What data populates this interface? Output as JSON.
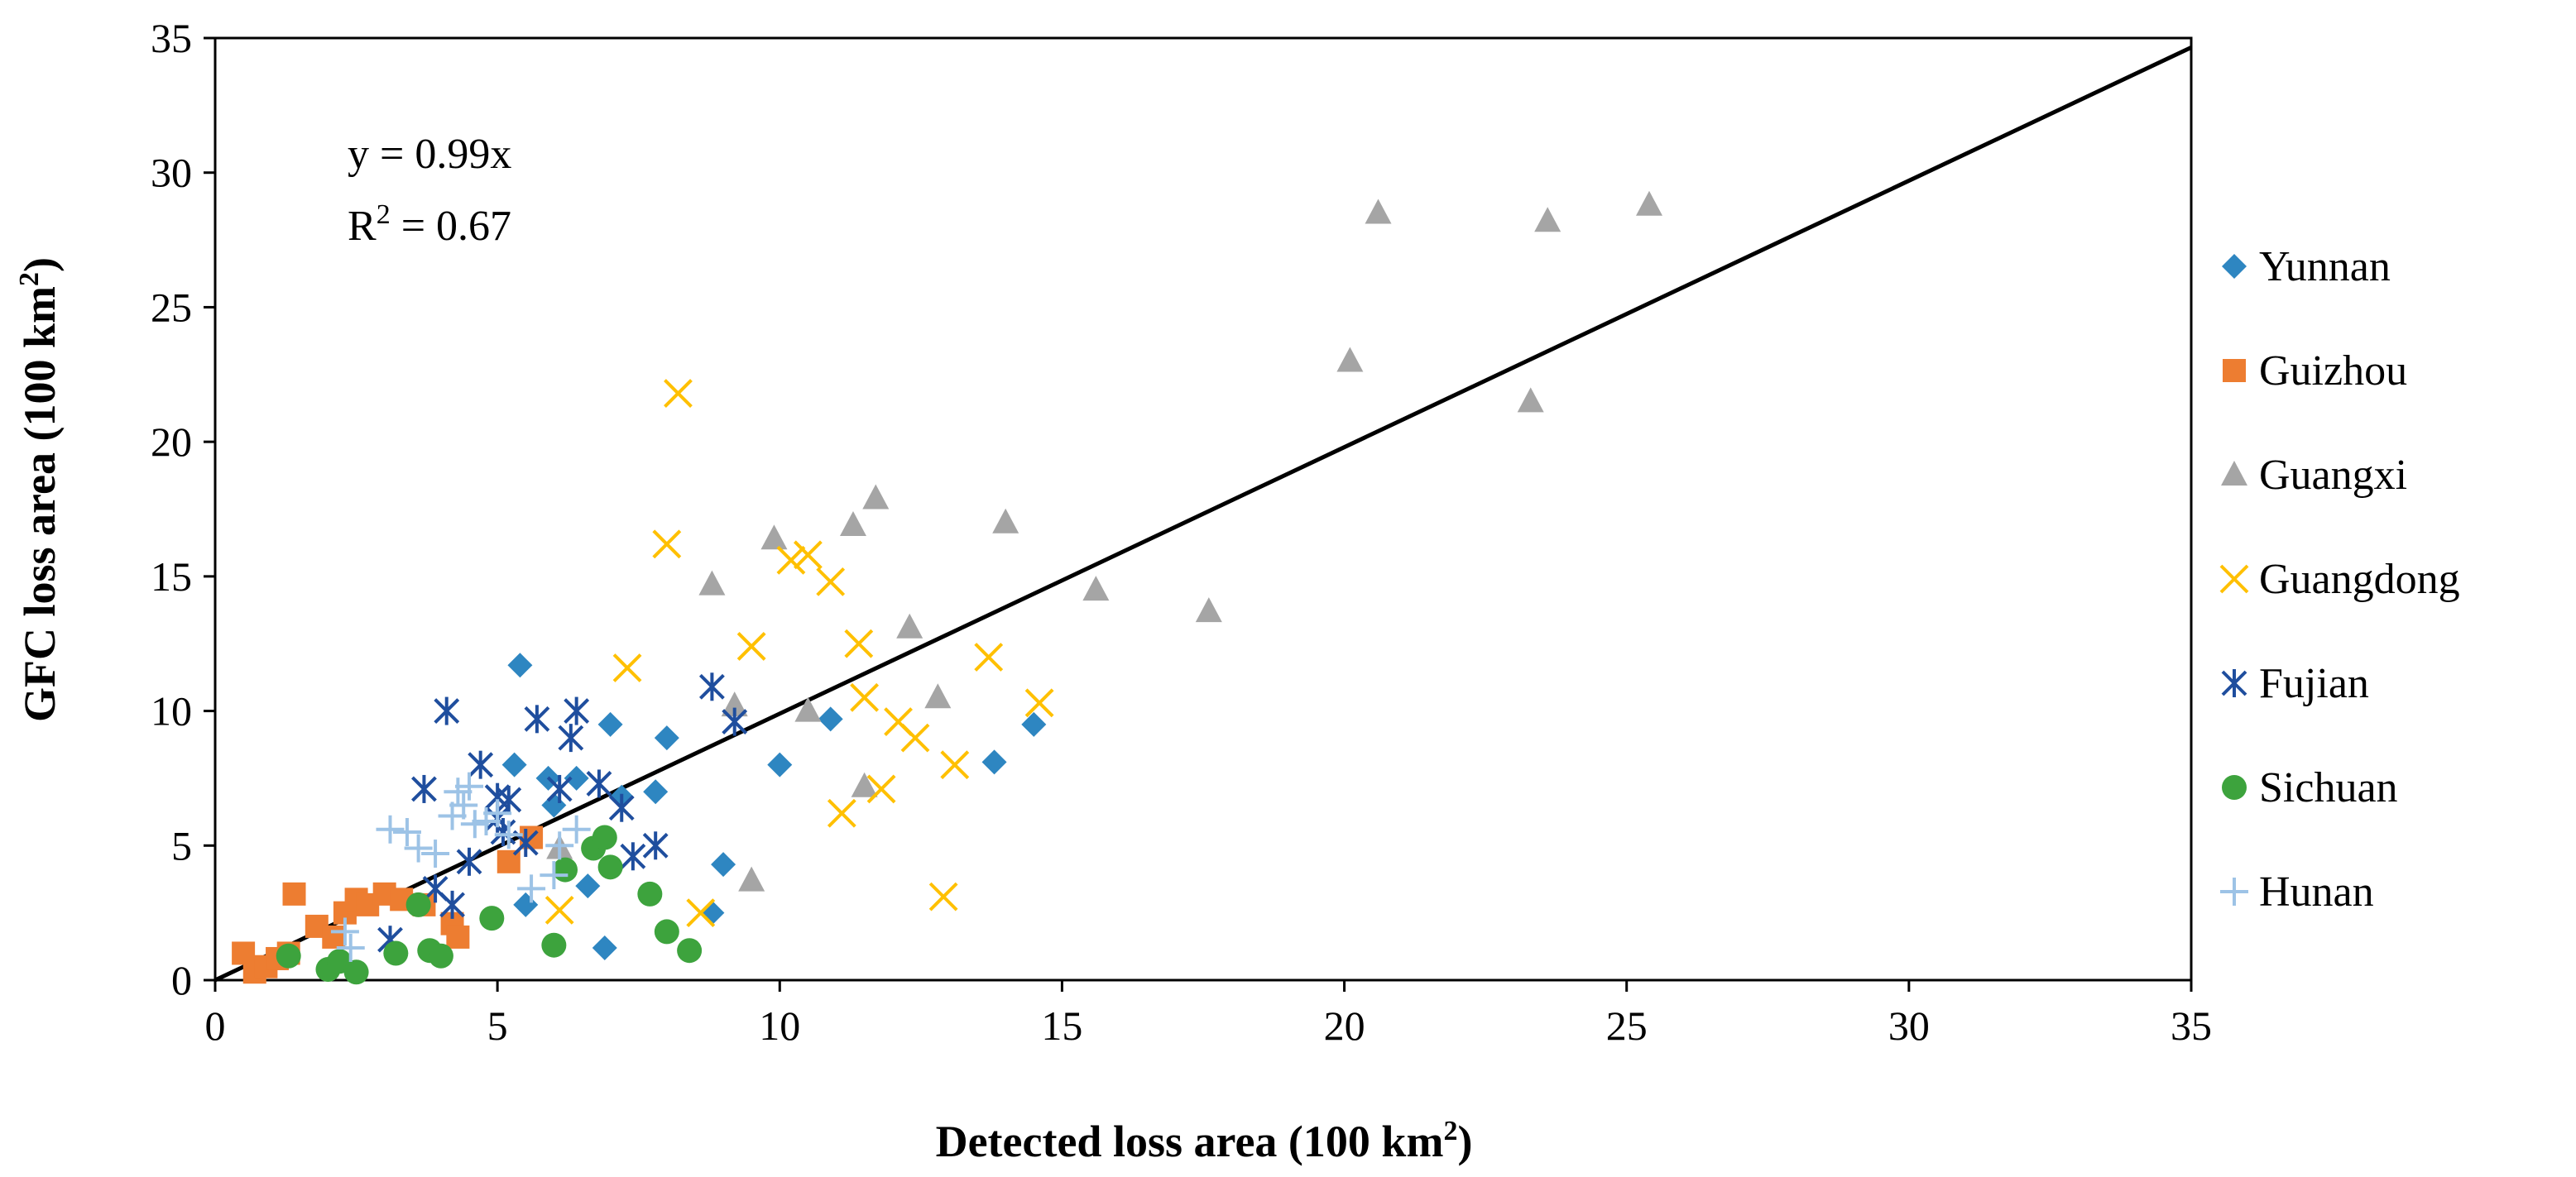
{
  "chart_data": {
    "type": "scatter",
    "title": "",
    "xlabel_main": "Detected loss area (100 km",
    "xlabel_sup": "2",
    "xlabel_end": ")",
    "ylabel_main": "GFC loss area (100 km",
    "ylabel_sup": "2",
    "ylabel_end": ")",
    "xlim": [
      0,
      35
    ],
    "ylim": [
      0,
      35
    ],
    "xticks": [
      0,
      5,
      10,
      15,
      20,
      25,
      30,
      35
    ],
    "yticks": [
      0,
      5,
      10,
      15,
      20,
      25,
      30,
      35
    ],
    "grid": false,
    "legend_position": "right",
    "annotation": {
      "equation": "y = 0.99x",
      "r2_prefix": "R",
      "r2_sup": "2",
      "r2_suffix": " = 0.67"
    },
    "trendline": {
      "slope": 0.99,
      "x_range": [
        0,
        35
      ],
      "color": "#000000"
    },
    "series": [
      {
        "name": "Yunnan",
        "marker": "diamond",
        "color": "#2E86C1",
        "points": [
          [
            5.4,
            11.7
          ],
          [
            5.3,
            8.0
          ],
          [
            5.5,
            2.8
          ],
          [
            5.9,
            7.5
          ],
          [
            6.0,
            6.5
          ],
          [
            6.4,
            7.5
          ],
          [
            6.6,
            3.5
          ],
          [
            7.0,
            9.5
          ],
          [
            7.2,
            6.8
          ],
          [
            7.8,
            7.0
          ],
          [
            8.0,
            9.0
          ],
          [
            8.8,
            2.5
          ],
          [
            9.0,
            4.3
          ],
          [
            10.0,
            8.0
          ],
          [
            10.9,
            9.7
          ],
          [
            13.8,
            8.1
          ],
          [
            14.5,
            9.5
          ],
          [
            6.9,
            1.2
          ],
          [
            3.2,
            1.0
          ]
        ]
      },
      {
        "name": "Guizhou",
        "marker": "square",
        "color": "#ED7D31",
        "points": [
          [
            0.5,
            1.0
          ],
          [
            0.7,
            0.3
          ],
          [
            0.9,
            0.5
          ],
          [
            1.1,
            0.8
          ],
          [
            1.3,
            1.0
          ],
          [
            1.4,
            3.2
          ],
          [
            1.8,
            2.0
          ],
          [
            2.1,
            1.6
          ],
          [
            2.3,
            2.5
          ],
          [
            2.5,
            3.0
          ],
          [
            2.7,
            2.8
          ],
          [
            3.0,
            3.2
          ],
          [
            3.3,
            3.0
          ],
          [
            3.7,
            2.8
          ],
          [
            4.2,
            2.1
          ],
          [
            4.3,
            1.6
          ],
          [
            5.2,
            4.4
          ],
          [
            5.6,
            5.3
          ]
        ]
      },
      {
        "name": "Guangxi",
        "marker": "triangle",
        "color": "#A5A5A5",
        "points": [
          [
            6.1,
            4.9
          ],
          [
            8.8,
            14.7
          ],
          [
            9.2,
            10.2
          ],
          [
            9.5,
            3.7
          ],
          [
            9.9,
            16.4
          ],
          [
            10.5,
            10.0
          ],
          [
            11.3,
            16.9
          ],
          [
            11.5,
            7.2
          ],
          [
            11.7,
            17.9
          ],
          [
            12.3,
            13.1
          ],
          [
            12.8,
            10.5
          ],
          [
            14.0,
            17.0
          ],
          [
            15.6,
            14.5
          ],
          [
            17.6,
            13.7
          ],
          [
            20.1,
            23.0
          ],
          [
            20.6,
            28.5
          ],
          [
            23.3,
            21.5
          ],
          [
            23.6,
            28.2
          ],
          [
            25.4,
            28.8
          ]
        ]
      },
      {
        "name": "Guangdong",
        "marker": "cross",
        "color": "#FFC000",
        "points": [
          [
            6.1,
            2.6
          ],
          [
            7.3,
            11.6
          ],
          [
            8.0,
            16.2
          ],
          [
            8.2,
            21.8
          ],
          [
            8.6,
            2.5
          ],
          [
            9.5,
            12.4
          ],
          [
            10.2,
            15.6
          ],
          [
            10.5,
            15.8
          ],
          [
            10.9,
            14.8
          ],
          [
            11.1,
            6.2
          ],
          [
            11.4,
            12.5
          ],
          [
            11.5,
            10.5
          ],
          [
            11.8,
            7.1
          ],
          [
            12.1,
            9.6
          ],
          [
            12.4,
            9.0
          ],
          [
            12.9,
            3.1
          ],
          [
            13.1,
            8.0
          ],
          [
            13.7,
            12.0
          ],
          [
            14.6,
            10.3
          ]
        ]
      },
      {
        "name": "Fujian",
        "marker": "asterisk",
        "color": "#1F4E9E",
        "points": [
          [
            3.1,
            1.5
          ],
          [
            3.7,
            7.1
          ],
          [
            4.1,
            10.0
          ],
          [
            4.2,
            2.8
          ],
          [
            4.5,
            4.4
          ],
          [
            4.7,
            8.0
          ],
          [
            5.0,
            6.8
          ],
          [
            5.0,
            6.0
          ],
          [
            5.1,
            5.5
          ],
          [
            5.2,
            6.7
          ],
          [
            5.5,
            5.1
          ],
          [
            5.7,
            9.7
          ],
          [
            6.1,
            7.1
          ],
          [
            6.3,
            9.0
          ],
          [
            6.4,
            10.0
          ],
          [
            6.8,
            7.3
          ],
          [
            7.2,
            6.4
          ],
          [
            7.4,
            4.6
          ],
          [
            7.8,
            5.0
          ],
          [
            8.8,
            10.9
          ],
          [
            9.2,
            9.6
          ],
          [
            3.9,
            3.4
          ]
        ]
      },
      {
        "name": "Sichuan",
        "marker": "circle",
        "color": "#3DA33D",
        "points": [
          [
            1.3,
            0.9
          ],
          [
            2.0,
            0.4
          ],
          [
            2.2,
            0.7
          ],
          [
            2.5,
            0.3
          ],
          [
            3.2,
            1.0
          ],
          [
            3.6,
            2.8
          ],
          [
            3.8,
            1.1
          ],
          [
            4.0,
            0.9
          ],
          [
            4.9,
            2.3
          ],
          [
            6.0,
            1.3
          ],
          [
            6.2,
            4.1
          ],
          [
            6.7,
            4.9
          ],
          [
            6.9,
            5.3
          ],
          [
            7.0,
            4.2
          ],
          [
            7.7,
            3.2
          ],
          [
            8.0,
            1.8
          ],
          [
            8.4,
            1.1
          ]
        ]
      },
      {
        "name": "Hunan",
        "marker": "plus",
        "color": "#9DC3E6",
        "points": [
          [
            2.4,
            1.2
          ],
          [
            3.1,
            5.6
          ],
          [
            3.4,
            5.5
          ],
          [
            3.6,
            4.9
          ],
          [
            3.9,
            4.7
          ],
          [
            4.2,
            6.1
          ],
          [
            4.3,
            7.0
          ],
          [
            4.4,
            6.5
          ],
          [
            4.5,
            7.2
          ],
          [
            4.6,
            5.8
          ],
          [
            4.8,
            5.9
          ],
          [
            5.0,
            6.2
          ],
          [
            5.2,
            5.4
          ],
          [
            5.6,
            3.4
          ],
          [
            6.0,
            3.9
          ],
          [
            6.1,
            5.0
          ],
          [
            6.4,
            5.6
          ],
          [
            2.3,
            1.8
          ]
        ]
      }
    ]
  }
}
